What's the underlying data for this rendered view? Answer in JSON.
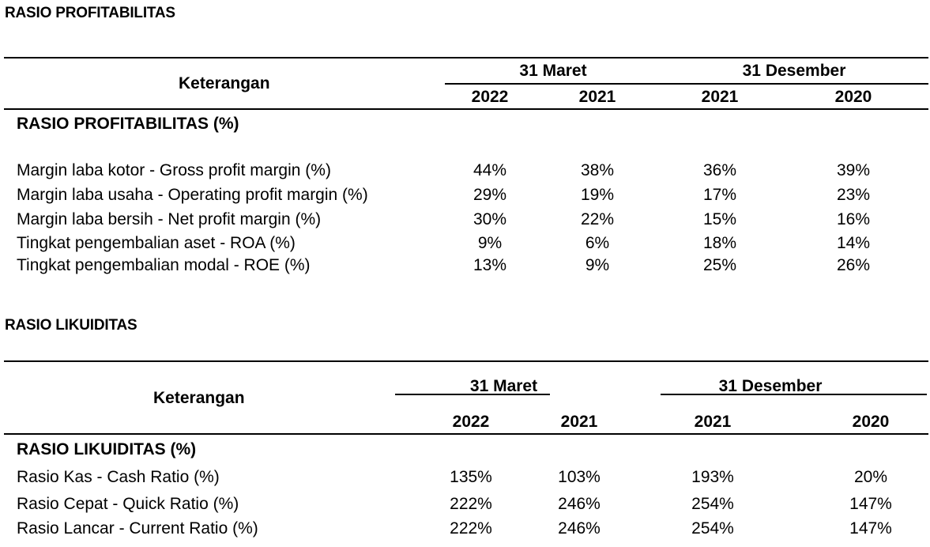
{
  "table1": {
    "section_title": "RASIO PROFITABILITAS",
    "header": {
      "label": "Keterangan",
      "group_march": "31 Maret",
      "group_december": "31 Desember",
      "years": [
        "2022",
        "2021",
        "2021",
        "2020"
      ]
    },
    "category": "RASIO PROFITABILITAS (%)",
    "rows": [
      {
        "label": "Margin laba kotor - Gross profit margin (%)",
        "values": [
          "44%",
          "38%",
          "36%",
          "39%"
        ]
      },
      {
        "label": "Margin laba usaha - Operating profit margin (%)",
        "values": [
          "29%",
          "19%",
          "17%",
          "23%"
        ]
      },
      {
        "label": "Margin laba bersih - Net profit margin (%)",
        "values": [
          "30%",
          "22%",
          "15%",
          "16%"
        ]
      },
      {
        "label": "Tingkat pengembalian aset - ROA (%)",
        "values": [
          "9%",
          "6%",
          "18%",
          "14%"
        ]
      },
      {
        "label": "Tingkat pengembalian modal - ROE (%)",
        "values": [
          "13%",
          "9%",
          "25%",
          "26%"
        ]
      }
    ]
  },
  "table2": {
    "section_title": "RASIO LIKUIDITAS",
    "header": {
      "label": "Keterangan",
      "group_march": "31 Maret",
      "group_december": "31 Desember",
      "years": [
        "2022",
        "2021",
        "2021",
        "2020"
      ]
    },
    "category": "RASIO LIKUIDITAS (%)",
    "rows": [
      {
        "label": "Rasio Kas - Cash Ratio (%)",
        "values": [
          "135%",
          "103%",
          "193%",
          "20%"
        ]
      },
      {
        "label": "Rasio Cepat - Quick Ratio (%)",
        "values": [
          "222%",
          "246%",
          "254%",
          "147%"
        ]
      },
      {
        "label": "Rasio Lancar - Current Ratio (%)",
        "values": [
          "222%",
          "246%",
          "254%",
          "147%"
        ]
      }
    ]
  }
}
